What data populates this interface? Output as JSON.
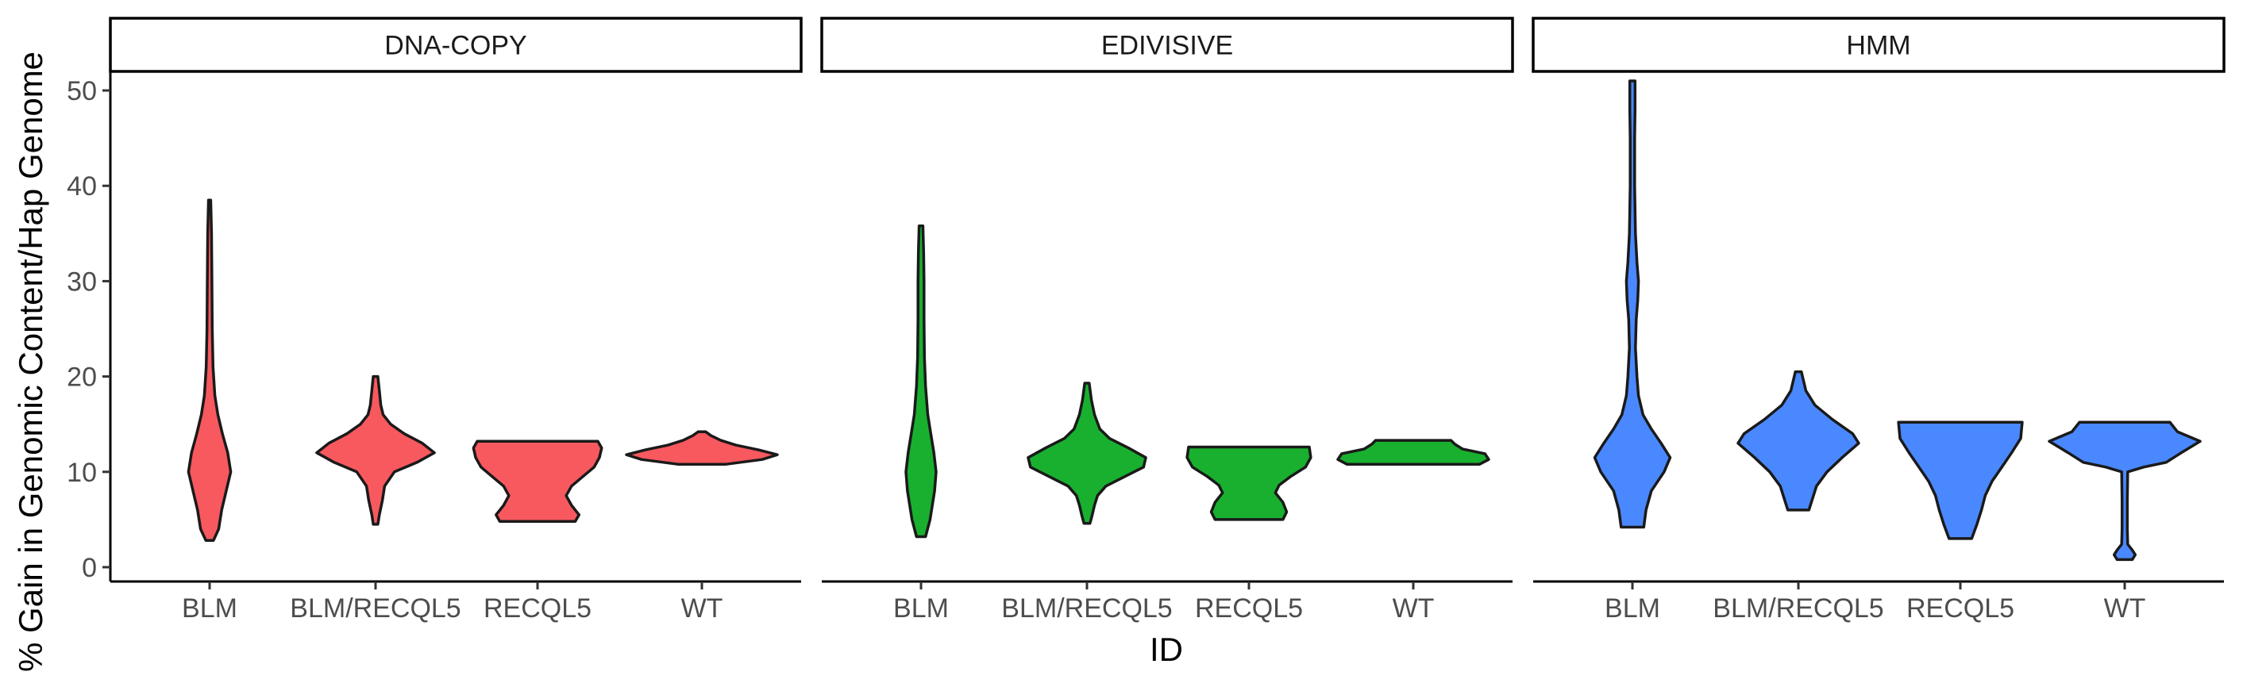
{
  "chart_data": {
    "type": "violin",
    "xlabel": "ID",
    "ylabel": "% Gain in Genomic Content/Hap Genome",
    "ylim": [
      -1.5,
      52
    ],
    "yticks": [
      0,
      10,
      20,
      30,
      40,
      50
    ],
    "categories": [
      "BLM",
      "BLM/RECQL5",
      "RECQL5",
      "WT"
    ],
    "grid": false,
    "legend": "none",
    "panels": [
      {
        "title": "DNA-COPY",
        "fill": "#F8595F",
        "violins": [
          {
            "category": "BLM",
            "min": 2.8,
            "max": 38.5,
            "profile": [
              [
                2.8,
                0.05
              ],
              [
                4,
                0.12
              ],
              [
                6,
                0.16
              ],
              [
                8,
                0.22
              ],
              [
                10,
                0.28
              ],
              [
                12,
                0.24
              ],
              [
                14,
                0.17
              ],
              [
                16,
                0.11
              ],
              [
                18,
                0.07
              ],
              [
                21,
                0.045
              ],
              [
                25,
                0.035
              ],
              [
                30,
                0.03
              ],
              [
                35,
                0.025
              ],
              [
                38.5,
                0.015
              ]
            ]
          },
          {
            "category": "BLM/RECQL5",
            "min": 4.5,
            "max": 20,
            "profile": [
              [
                4.5,
                0.03
              ],
              [
                5.5,
                0.05
              ],
              [
                7,
                0.09
              ],
              [
                8.5,
                0.12
              ],
              [
                10,
                0.25
              ],
              [
                11,
                0.55
              ],
              [
                12,
                0.78
              ],
              [
                13,
                0.62
              ],
              [
                14,
                0.38
              ],
              [
                15,
                0.2
              ],
              [
                16,
                0.1
              ],
              [
                17,
                0.07
              ],
              [
                18.5,
                0.05
              ],
              [
                20,
                0.03
              ]
            ]
          },
          {
            "category": "RECQL5",
            "min": 4.8,
            "max": 13.2,
            "profile": [
              [
                4.8,
                0.5
              ],
              [
                5.5,
                0.55
              ],
              [
                6.5,
                0.45
              ],
              [
                7.5,
                0.38
              ],
              [
                8.5,
                0.45
              ],
              [
                9.5,
                0.6
              ],
              [
                10.5,
                0.75
              ],
              [
                11.5,
                0.82
              ],
              [
                12.5,
                0.85
              ],
              [
                13.2,
                0.8
              ]
            ]
          },
          {
            "category": "WT",
            "min": 10.8,
            "max": 14.2,
            "profile": [
              [
                10.8,
                0.32
              ],
              [
                11.3,
                0.8
              ],
              [
                11.8,
                1.0
              ],
              [
                12.3,
                0.75
              ],
              [
                12.8,
                0.45
              ],
              [
                13.3,
                0.25
              ],
              [
                13.8,
                0.12
              ],
              [
                14.2,
                0.05
              ]
            ]
          }
        ]
      },
      {
        "title": "EDIVISIVE",
        "fill": "#19B02F",
        "violins": [
          {
            "category": "BLM",
            "min": 3.2,
            "max": 35.8,
            "profile": [
              [
                3.2,
                0.06
              ],
              [
                5,
                0.12
              ],
              [
                8,
                0.18
              ],
              [
                10,
                0.2
              ],
              [
                12,
                0.17
              ],
              [
                14,
                0.13
              ],
              [
                16,
                0.09
              ],
              [
                19,
                0.06
              ],
              [
                22,
                0.045
              ],
              [
                26,
                0.04
              ],
              [
                30,
                0.04
              ],
              [
                33,
                0.035
              ],
              [
                35.8,
                0.025
              ]
            ]
          },
          {
            "category": "BLM/RECQL5",
            "min": 4.6,
            "max": 19.3,
            "profile": [
              [
                4.6,
                0.04
              ],
              [
                5.5,
                0.07
              ],
              [
                6.5,
                0.1
              ],
              [
                7.5,
                0.14
              ],
              [
                8.5,
                0.25
              ],
              [
                9.5,
                0.5
              ],
              [
                10.5,
                0.75
              ],
              [
                11.5,
                0.78
              ],
              [
                12.5,
                0.55
              ],
              [
                13.5,
                0.3
              ],
              [
                14.5,
                0.17
              ],
              [
                16,
                0.1
              ],
              [
                17.5,
                0.06
              ],
              [
                19.3,
                0.03
              ]
            ]
          },
          {
            "category": "RECQL5",
            "min": 5,
            "max": 12.6,
            "profile": [
              [
                5,
                0.45
              ],
              [
                5.8,
                0.5
              ],
              [
                6.8,
                0.45
              ],
              [
                7.8,
                0.35
              ],
              [
                8.6,
                0.4
              ],
              [
                9.5,
                0.55
              ],
              [
                10.5,
                0.75
              ],
              [
                11.5,
                0.82
              ],
              [
                12.6,
                0.8
              ]
            ]
          },
          {
            "category": "WT",
            "min": 10.8,
            "max": 13.3,
            "profile": [
              [
                10.8,
                0.88
              ],
              [
                11.3,
                1.0
              ],
              [
                11.9,
                0.95
              ],
              [
                12.4,
                0.65
              ],
              [
                12.9,
                0.55
              ],
              [
                13.3,
                0.5
              ]
            ]
          }
        ]
      },
      {
        "title": "HMM",
        "fill": "#4A88FF",
        "violins": [
          {
            "category": "BLM",
            "min": 4.2,
            "max": 51,
            "profile": [
              [
                4.2,
                0.15
              ],
              [
                6,
                0.18
              ],
              [
                8,
                0.25
              ],
              [
                10,
                0.42
              ],
              [
                11.5,
                0.5
              ],
              [
                13,
                0.38
              ],
              [
                14.5,
                0.25
              ],
              [
                16,
                0.14
              ],
              [
                18,
                0.08
              ],
              [
                20,
                0.06
              ],
              [
                23,
                0.04
              ],
              [
                26,
                0.05
              ],
              [
                28,
                0.07
              ],
              [
                30,
                0.08
              ],
              [
                32,
                0.06
              ],
              [
                35,
                0.04
              ],
              [
                40,
                0.03
              ],
              [
                45,
                0.03
              ],
              [
                48,
                0.035
              ],
              [
                51,
                0.035
              ]
            ]
          },
          {
            "category": "BLM/RECQL5",
            "min": 6,
            "max": 20.5,
            "profile": [
              [
                6,
                0.14
              ],
              [
                7,
                0.18
              ],
              [
                8.5,
                0.24
              ],
              [
                10,
                0.38
              ],
              [
                11.5,
                0.58
              ],
              [
                13,
                0.8
              ],
              [
                14,
                0.72
              ],
              [
                15.5,
                0.45
              ],
              [
                17,
                0.22
              ],
              [
                18.5,
                0.1
              ],
              [
                20.5,
                0.04
              ]
            ]
          },
          {
            "category": "RECQL5",
            "min": 3,
            "max": 15.2,
            "profile": [
              [
                3,
                0.15
              ],
              [
                4.5,
                0.22
              ],
              [
                6,
                0.28
              ],
              [
                7.5,
                0.33
              ],
              [
                9,
                0.42
              ],
              [
                10.5,
                0.55
              ],
              [
                12,
                0.68
              ],
              [
                13.5,
                0.8
              ],
              [
                15.2,
                0.82
              ]
            ]
          },
          {
            "category": "WT",
            "min": 0.8,
            "max": 15.2,
            "profile": [
              [
                0.8,
                0.1
              ],
              [
                1.3,
                0.14
              ],
              [
                1.8,
                0.1
              ],
              [
                2.4,
                0.04
              ],
              [
                4,
                0.035
              ],
              [
                7,
                0.035
              ],
              [
                10,
                0.04
              ],
              [
                10.5,
                0.25
              ],
              [
                11,
                0.55
              ],
              [
                12,
                0.75
              ],
              [
                13.2,
                1.0
              ],
              [
                14.2,
                0.7
              ],
              [
                15.2,
                0.6
              ]
            ]
          }
        ]
      }
    ]
  }
}
